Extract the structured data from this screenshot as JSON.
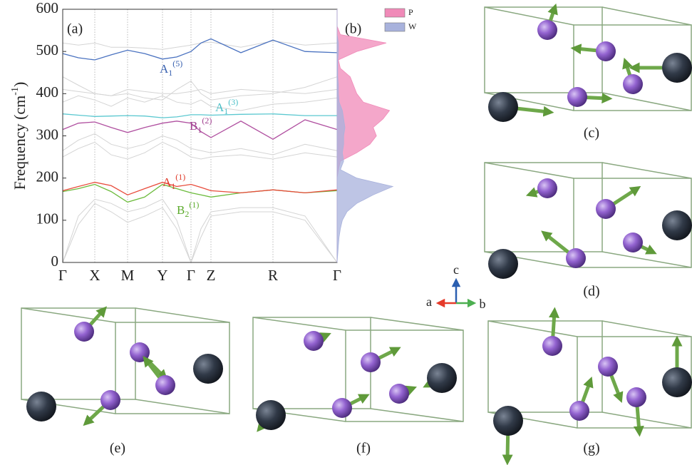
{
  "chart_data": [
    {
      "type": "line",
      "panel": "(a)",
      "ylabel": {
        "text": "Frequency (cm",
        "sup": "-1",
        "end": ")"
      },
      "x": [
        0,
        22,
        45,
        68,
        91,
        115,
        140,
        160,
        180,
        194,
        208,
        250,
        295,
        340,
        385
      ],
      "xlim": [
        0,
        385
      ],
      "xticks": [
        {
          "value": 0,
          "label": "Γ"
        },
        {
          "value": 45,
          "label": "X"
        },
        {
          "value": 91,
          "label": "M"
        },
        {
          "value": 140,
          "label": "Y"
        },
        {
          "value": 180,
          "label": "Γ"
        },
        {
          "value": 208,
          "label": "Z"
        },
        {
          "value": 295,
          "label": "R"
        },
        {
          "value": 385,
          "label": "Γ"
        }
      ],
      "ylim": [
        0,
        600
      ],
      "yticks": [
        0,
        100,
        200,
        300,
        400,
        500,
        600
      ],
      "grid": true,
      "series": [
        {
          "color": "#d4d4d4",
          "values": [
            0,
            110,
            150,
            140,
            120,
            130,
            150,
            100,
            0,
            80,
            120,
            130,
            130,
            110,
            0
          ]
        },
        {
          "color": "#d4d4d4",
          "values": [
            0,
            90,
            140,
            120,
            95,
            110,
            130,
            80,
            0,
            60,
            110,
            120,
            120,
            100,
            0
          ]
        },
        {
          "color": "#d4d4d4",
          "values": [
            250,
            270,
            285,
            255,
            245,
            260,
            285,
            270,
            250,
            245,
            250,
            255,
            245,
            260,
            250
          ]
        },
        {
          "color": "#d4d4d4",
          "values": [
            265,
            290,
            305,
            280,
            270,
            280,
            300,
            290,
            270,
            265,
            260,
            270,
            255,
            280,
            265
          ]
        },
        {
          "color": "#d4d4d4",
          "values": [
            380,
            395,
            385,
            370,
            390,
            380,
            395,
            380,
            375,
            385,
            370,
            360,
            375,
            380,
            390
          ]
        },
        {
          "color": "#d4d4d4",
          "values": [
            410,
            405,
            400,
            395,
            410,
            405,
            400,
            400,
            405,
            410,
            400,
            410,
            405,
            400,
            410
          ]
        },
        {
          "color": "#d4d4d4",
          "values": [
            440,
            420,
            400,
            395,
            400,
            390,
            385,
            410,
            430,
            400,
            385,
            395,
            400,
            415,
            440
          ]
        },
        {
          "color": "#d4d4d4",
          "values": [
            520,
            515,
            520,
            510,
            510,
            508,
            505,
            510,
            515,
            520,
            522,
            510,
            525,
            515,
            520
          ]
        },
        {
          "color": "#6cbb3c",
          "values": [
            168,
            175,
            185,
            168,
            143,
            155,
            185,
            175,
            165,
            160,
            155,
            165,
            172,
            165,
            170
          ]
        },
        {
          "color": "#e84c3c",
          "values": [
            170,
            180,
            190,
            182,
            160,
            175,
            190,
            180,
            185,
            178,
            170,
            165,
            172,
            165,
            172
          ]
        },
        {
          "color": "#b050a0",
          "values": [
            315,
            330,
            333,
            320,
            308,
            320,
            330,
            335,
            330,
            310,
            296,
            335,
            292,
            338,
            315
          ]
        },
        {
          "color": "#5bc8d0",
          "values": [
            352,
            349,
            346,
            347,
            348,
            347,
            343,
            345,
            350,
            350,
            349,
            351,
            352,
            348,
            348
          ]
        },
        {
          "color": "#4a72c0",
          "values": [
            495,
            485,
            480,
            492,
            503,
            495,
            482,
            487,
            500,
            520,
            530,
            497,
            527,
            500,
            497
          ]
        }
      ],
      "annotations": [
        {
          "text": "A",
          "sub": "1",
          "sup": "(5)",
          "color": "#3a62b0"
        },
        {
          "text": "A",
          "sub": "1",
          "sup": "(3)",
          "color": "#4cc0c8"
        },
        {
          "text": "B",
          "sub": "1",
          "sup": "(2)",
          "color": "#a04090"
        },
        {
          "text": "A",
          "sub": "1",
          "sup": "(1)",
          "color": "#e03c2c"
        },
        {
          "text": "B",
          "sub": "2",
          "sup": "(1)",
          "color": "#5cab2c"
        }
      ]
    },
    {
      "type": "area",
      "panel": "(b)",
      "y": [
        0,
        20,
        40,
        60,
        80,
        100,
        120,
        140,
        160,
        180,
        200,
        220,
        240,
        260,
        280,
        300,
        320,
        340,
        360,
        380,
        400,
        420,
        440,
        460,
        480,
        500,
        520,
        540,
        560,
        580,
        600
      ],
      "ylim": [
        0,
        600
      ],
      "xlim": [
        0,
        1
      ],
      "series": [
        {
          "name": "P",
          "color": "#f08ab8",
          "values": [
            0,
            0,
            0,
            0,
            0,
            0,
            0,
            0,
            0,
            0,
            0,
            0.02,
            0.05,
            0.3,
            0.5,
            0.6,
            0.55,
            0.7,
            0.8,
            0.4,
            0.3,
            0.25,
            0.2,
            0.05,
            0.02,
            0.3,
            0.75,
            0.05,
            0,
            0,
            0
          ]
        },
        {
          "name": "W",
          "color": "#a8b2dc",
          "values": [
            0,
            0.01,
            0.02,
            0.03,
            0.05,
            0.08,
            0.15,
            0.3,
            0.55,
            0.85,
            0.3,
            0.05,
            0.1,
            0.08,
            0.1,
            0.1,
            0.12,
            0.1,
            0.08,
            0.03,
            0.02,
            0.02,
            0.01,
            0.01,
            0.01,
            0.02,
            0.02,
            0,
            0,
            0,
            0
          ]
        }
      ]
    }
  ],
  "structures": [
    "(c)",
    "(d)",
    "(e)",
    "(f)",
    "(g)"
  ],
  "lattice_axes": [
    "a",
    "b",
    "c"
  ]
}
